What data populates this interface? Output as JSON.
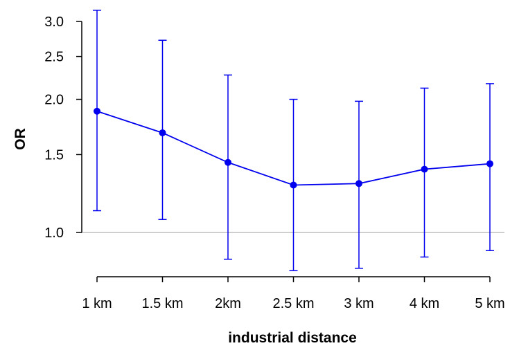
{
  "chart_data": {
    "type": "line",
    "xlabel": "industrial distance",
    "ylabel": "OR",
    "y_scale": "log",
    "ylim": [
      0.82,
      3.2
    ],
    "reference_line": 1.0,
    "y_ticks": [
      {
        "value": 1.0,
        "label": "1.0"
      },
      {
        "value": 1.5,
        "label": "1.5"
      },
      {
        "value": 2.0,
        "label": "2.0"
      },
      {
        "value": 2.5,
        "label": "2.5"
      },
      {
        "value": 3.0,
        "label": "3.0"
      }
    ],
    "categories": [
      "1 km",
      "1.5 km",
      "2km",
      "2.5 km",
      "3 km",
      "4 km",
      "5 km"
    ],
    "series": [
      {
        "values": [
          1.88,
          1.68,
          1.44,
          1.28,
          1.29,
          1.39,
          1.43
        ],
        "lower": [
          1.12,
          1.07,
          0.87,
          0.82,
          0.83,
          0.88,
          0.91
        ],
        "upper": [
          3.18,
          2.72,
          2.27,
          2.0,
          1.98,
          2.12,
          2.17
        ]
      }
    ],
    "colors": {
      "series": "#0000ee",
      "reference": "#bebebe",
      "axis": "#000000"
    },
    "grid": false,
    "legend": "none"
  }
}
